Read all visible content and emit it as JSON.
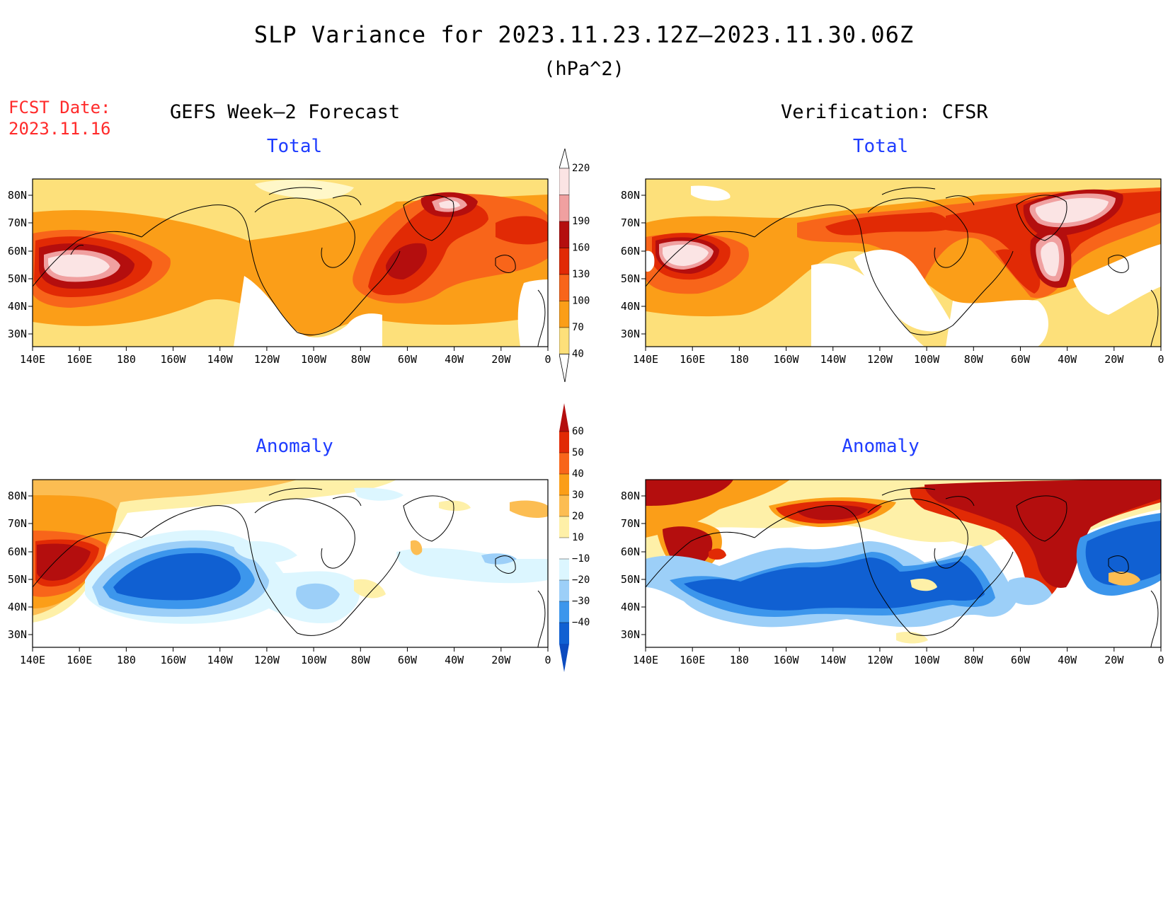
{
  "title": "SLP Variance for 2023.11.23.12Z–2023.11.30.06Z",
  "units": "(hPa^2)",
  "fcst_label": "FCST Date:",
  "fcst_date": "2023.11.16",
  "left_header": "GEFS Week–2 Forecast",
  "right_header": "Verification: CFSR",
  "panels": {
    "top_left_title": "Total",
    "top_right_title": "Total",
    "bottom_left_title": "Anomaly",
    "bottom_right_title": "Anomaly"
  },
  "lat_labels": [
    "80N",
    "70N",
    "60N",
    "50N",
    "40N",
    "30N"
  ],
  "lon_labels": [
    "140E",
    "160E",
    "180",
    "160W",
    "140W",
    "120W",
    "100W",
    "80W",
    "60W",
    "40W",
    "20W",
    "0"
  ],
  "colorbar_total": {
    "labels": [
      "220",
      "190",
      "160",
      "130",
      "100",
      "70",
      "40"
    ],
    "colors": [
      "#fbe4e4",
      "#f0a0a0",
      "#b40e0e",
      "#e12a05",
      "#f8651a",
      "#fb9e18",
      "#fde07a"
    ]
  },
  "colorbar_anomaly": {
    "labels": [
      "60",
      "50",
      "40",
      "30",
      "20",
      "10",
      "−10",
      "−20",
      "−30",
      "−40"
    ],
    "colors": [
      "#b40e0e",
      "#e12a05",
      "#f8651a",
      "#fb9e18",
      "#fcbd52",
      "#fef0a8",
      "#ffffff",
      "#dcf6ff",
      "#9ccff8",
      "#3c96ec",
      "#1060d2",
      "#0c4bbf"
    ]
  }
}
